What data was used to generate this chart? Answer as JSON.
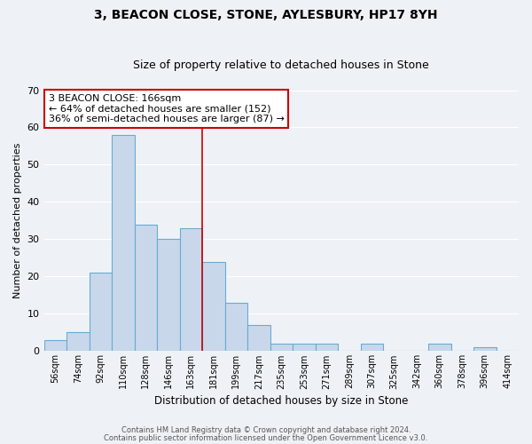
{
  "title": "3, BEACON CLOSE, STONE, AYLESBURY, HP17 8YH",
  "subtitle": "Size of property relative to detached houses in Stone",
  "xlabel": "Distribution of detached houses by size in Stone",
  "ylabel": "Number of detached properties",
  "bin_labels": [
    "56sqm",
    "74sqm",
    "92sqm",
    "110sqm",
    "128sqm",
    "146sqm",
    "163sqm",
    "181sqm",
    "199sqm",
    "217sqm",
    "235sqm",
    "253sqm",
    "271sqm",
    "289sqm",
    "307sqm",
    "325sqm",
    "342sqm",
    "360sqm",
    "378sqm",
    "396sqm",
    "414sqm"
  ],
  "bar_heights": [
    3,
    5,
    21,
    58,
    34,
    30,
    33,
    24,
    13,
    7,
    2,
    2,
    2,
    0,
    2,
    0,
    0,
    2,
    0,
    1,
    0
  ],
  "bar_color": "#c8d8ea",
  "bar_edge_color": "#6aaad4",
  "ref_line_index": 6.5,
  "reference_line_color": "#cc0000",
  "ylim": [
    0,
    70
  ],
  "annotation_title": "3 BEACON CLOSE: 166sqm",
  "annotation_line1": "← 64% of detached houses are smaller (152)",
  "annotation_line2": "36% of semi-detached houses are larger (87) →",
  "annotation_box_edge_color": "#cc0000",
  "footer_line1": "Contains HM Land Registry data © Crown copyright and database right 2024.",
  "footer_line2": "Contains public sector information licensed under the Open Government Licence v3.0.",
  "background_color": "#eef2f7",
  "grid_color": "#ffffff",
  "title_fontsize": 10,
  "subtitle_fontsize": 9
}
